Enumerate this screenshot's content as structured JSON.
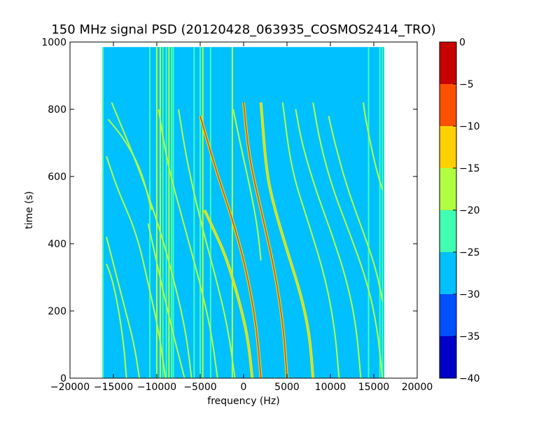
{
  "chart_data": {
    "type": "heatmap",
    "title": "150 MHz signal PSD (20120428_063935_COSMOS2414_TRO)",
    "xlabel": "frequency (Hz)",
    "ylabel": "time (s)",
    "xlim": [
      -20000,
      20000
    ],
    "ylim": [
      0,
      1000
    ],
    "x_ticks": [
      -20000,
      -15000,
      -10000,
      -5000,
      0,
      5000,
      10000,
      15000,
      20000
    ],
    "x_tick_labels": [
      "−20000",
      "−15000",
      "−10000",
      "−5000",
      "0",
      "5000",
      "10000",
      "15000",
      "20000"
    ],
    "y_ticks": [
      0,
      200,
      400,
      600,
      800,
      1000
    ],
    "y_tick_labels": [
      "0",
      "200",
      "400",
      "600",
      "800",
      "1000"
    ],
    "data_extent": {
      "x": [
        -16200,
        16200
      ],
      "y": [
        0,
        985
      ]
    },
    "background_level": -27.5,
    "colorbar": {
      "range": [
        -40,
        0
      ],
      "levels": [
        -40,
        -35,
        -30,
        -25,
        -20,
        -15,
        -10,
        -5,
        0
      ],
      "tick_labels": [
        "−40",
        "−35",
        "−30",
        "−25",
        "−20",
        "−15",
        "−10",
        "−5",
        "0"
      ],
      "colors": [
        "#0000c8",
        "#0050ff",
        "#00c0ff",
        "#40ffb0",
        "#b0ff40",
        "#ffd000",
        "#ff5000",
        "#c80000"
      ]
    },
    "vertical_lines": [
      {
        "freq": -16200,
        "level": -22
      },
      {
        "freq": -10800,
        "level": -22
      },
      {
        "freq": -10000,
        "level": -18
      },
      {
        "freq": -9600,
        "level": -18
      },
      {
        "freq": -9300,
        "level": -22
      },
      {
        "freq": -8900,
        "level": -22
      },
      {
        "freq": -8600,
        "level": -18
      },
      {
        "freq": -8300,
        "level": -22
      },
      {
        "freq": -8100,
        "level": -22
      },
      {
        "freq": -5700,
        "level": -22
      },
      {
        "freq": -5000,
        "level": -22
      },
      {
        "freq": -4700,
        "level": -18
      },
      {
        "freq": -3800,
        "level": -22
      },
      {
        "freq": -1300,
        "level": -18
      },
      {
        "freq": 14400,
        "level": -22
      },
      {
        "freq": 15700,
        "level": -22
      },
      {
        "freq": 16000,
        "level": -22
      }
    ],
    "tracks": [
      {
        "points": [
          [
            5000,
            0
          ],
          [
            4600,
            150
          ],
          [
            3600,
            320
          ],
          [
            2000,
            500
          ],
          [
            600,
            660
          ],
          [
            0,
            820
          ]
        ],
        "level": -8
      },
      {
        "points": [
          [
            2000,
            0
          ],
          [
            1500,
            150
          ],
          [
            500,
            300
          ],
          [
            -1000,
            450
          ],
          [
            -3200,
            620
          ],
          [
            -5000,
            780
          ]
        ],
        "level": -8
      },
      {
        "points": [
          [
            -1000,
            0
          ],
          [
            -1800,
            150
          ],
          [
            -3300,
            310
          ],
          [
            -4800,
            450
          ],
          [
            -6500,
            640
          ],
          [
            -7500,
            800
          ]
        ],
        "level": -17
      },
      {
        "points": [
          [
            -3000,
            0
          ],
          [
            -3800,
            150
          ],
          [
            -5200,
            300
          ],
          [
            -6800,
            450
          ],
          [
            -8800,
            640
          ],
          [
            -9800,
            800
          ]
        ],
        "level": -17
      },
      {
        "points": [
          [
            -13500,
            0
          ],
          [
            -13800,
            100
          ],
          [
            -14500,
            220
          ],
          [
            -15200,
            300
          ],
          [
            -15800,
            340
          ]
        ],
        "level": -20
      },
      {
        "points": [
          [
            -9000,
            0
          ],
          [
            -9700,
            130
          ],
          [
            -10800,
            260
          ],
          [
            -12300,
            430
          ],
          [
            -14500,
            560
          ],
          [
            -15800,
            660
          ]
        ],
        "level": -20
      },
      {
        "points": [
          [
            -6000,
            0
          ],
          [
            -6600,
            130
          ],
          [
            -7800,
            270
          ],
          [
            -9600,
            440
          ],
          [
            -12000,
            620
          ],
          [
            -15200,
            820
          ]
        ],
        "level": -20
      },
      {
        "points": [
          [
            1000,
            0
          ],
          [
            500,
            120
          ],
          [
            -500,
            230
          ],
          [
            -2000,
            360
          ],
          [
            -3400,
            440
          ],
          [
            -4500,
            500
          ]
        ],
        "level": -12
      },
      {
        "points": [
          [
            8000,
            0
          ],
          [
            7600,
            130
          ],
          [
            6600,
            250
          ],
          [
            5000,
            380
          ],
          [
            3400,
            520
          ],
          [
            2600,
            620
          ],
          [
            2000,
            820
          ]
        ],
        "level": -12
      },
      {
        "points": [
          [
            11000,
            0
          ],
          [
            10500,
            150
          ],
          [
            9400,
            300
          ],
          [
            7500,
            460
          ],
          [
            5500,
            620
          ],
          [
            4500,
            820
          ]
        ],
        "level": -17
      },
      {
        "points": [
          [
            13500,
            0
          ],
          [
            13000,
            150
          ],
          [
            12000,
            280
          ],
          [
            10300,
            420
          ],
          [
            8300,
            560
          ],
          [
            6700,
            700
          ],
          [
            6000,
            800
          ]
        ],
        "level": -17
      },
      {
        "points": [
          [
            16000,
            0
          ],
          [
            15400,
            150
          ],
          [
            14300,
            280
          ],
          [
            12400,
            420
          ],
          [
            10300,
            560
          ],
          [
            8800,
            700
          ],
          [
            8000,
            820
          ]
        ],
        "level": -17
      },
      {
        "points": [
          [
            16000,
            230
          ],
          [
            15300,
            320
          ],
          [
            14000,
            420
          ],
          [
            12000,
            560
          ],
          [
            10500,
            700
          ],
          [
            9800,
            780
          ]
        ],
        "level": -17
      },
      {
        "points": [
          [
            16000,
            560
          ],
          [
            15300,
            620
          ],
          [
            14600,
            700
          ],
          [
            14000,
            780
          ],
          [
            13800,
            820
          ]
        ],
        "level": -20
      },
      {
        "points": [
          [
            -6800,
            0
          ],
          [
            -8000,
            120
          ],
          [
            -9200,
            250
          ],
          [
            -10300,
            380
          ],
          [
            -11000,
            460
          ]
        ],
        "level": -17
      },
      {
        "points": [
          [
            -12000,
            0
          ],
          [
            -12600,
            100
          ],
          [
            -13500,
            190
          ],
          [
            -14600,
            300
          ],
          [
            -15800,
            420
          ]
        ],
        "level": -20
      },
      {
        "points": [
          [
            -10600,
            500
          ],
          [
            -11600,
            600
          ],
          [
            -12600,
            660
          ],
          [
            -14000,
            720
          ],
          [
            -15600,
            770
          ]
        ],
        "level": -20
      },
      {
        "points": [
          [
            2000,
            350
          ],
          [
            1600,
            450
          ],
          [
            800,
            560
          ],
          [
            -400,
            700
          ],
          [
            -1200,
            800
          ]
        ],
        "level": -20
      }
    ]
  }
}
